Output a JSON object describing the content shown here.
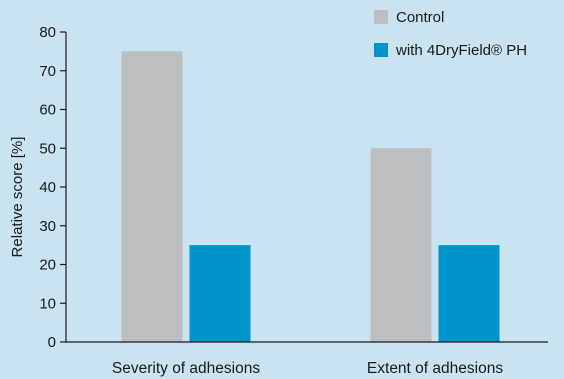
{
  "chart_data": {
    "type": "bar",
    "categories": [
      "Severity of adhesions",
      "Extent of adhesions"
    ],
    "series": [
      {
        "name": "Control",
        "values": [
          75,
          50
        ]
      },
      {
        "name": "with 4DryField® PH",
        "values": [
          25,
          25
        ]
      }
    ],
    "ylabel": "Relative score [%]",
    "xlabel": "",
    "ylim": [
      0,
      80
    ],
    "yticks": [
      "0",
      "10",
      "20",
      "30",
      "40",
      "50",
      "60",
      "70",
      "80"
    ],
    "grid": false,
    "legend_position": "top-right"
  },
  "colors": {
    "background": "#c9e3f1",
    "control": "#bcbec0",
    "treatment": "#0095c8",
    "axis": "#1a1a1a"
  }
}
